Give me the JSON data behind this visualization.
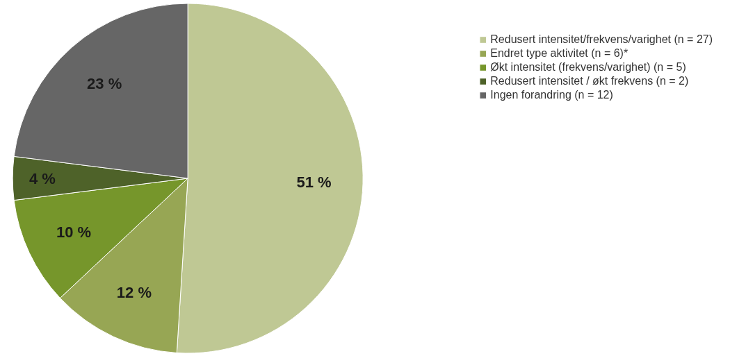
{
  "chart_data": {
    "type": "pie",
    "categories": [
      "Redusert intensitet/frekvens/varighet (n = 27)",
      "Endret type aktivitet (n = 6)*",
      "Økt intensitet (frekvens/varighet) (n = 5)",
      "Redusert intensitet / økt frekvens (n = 2)",
      "Ingen forandring (n = 12)"
    ],
    "values": [
      51,
      12,
      10,
      4,
      23
    ],
    "value_labels": [
      "51 %",
      "12 %",
      "10 %",
      "4 %",
      "23 %"
    ],
    "colors": [
      "#bfc894",
      "#97a654",
      "#76962b",
      "#4e6229",
      "#666666"
    ],
    "legend": "right"
  }
}
